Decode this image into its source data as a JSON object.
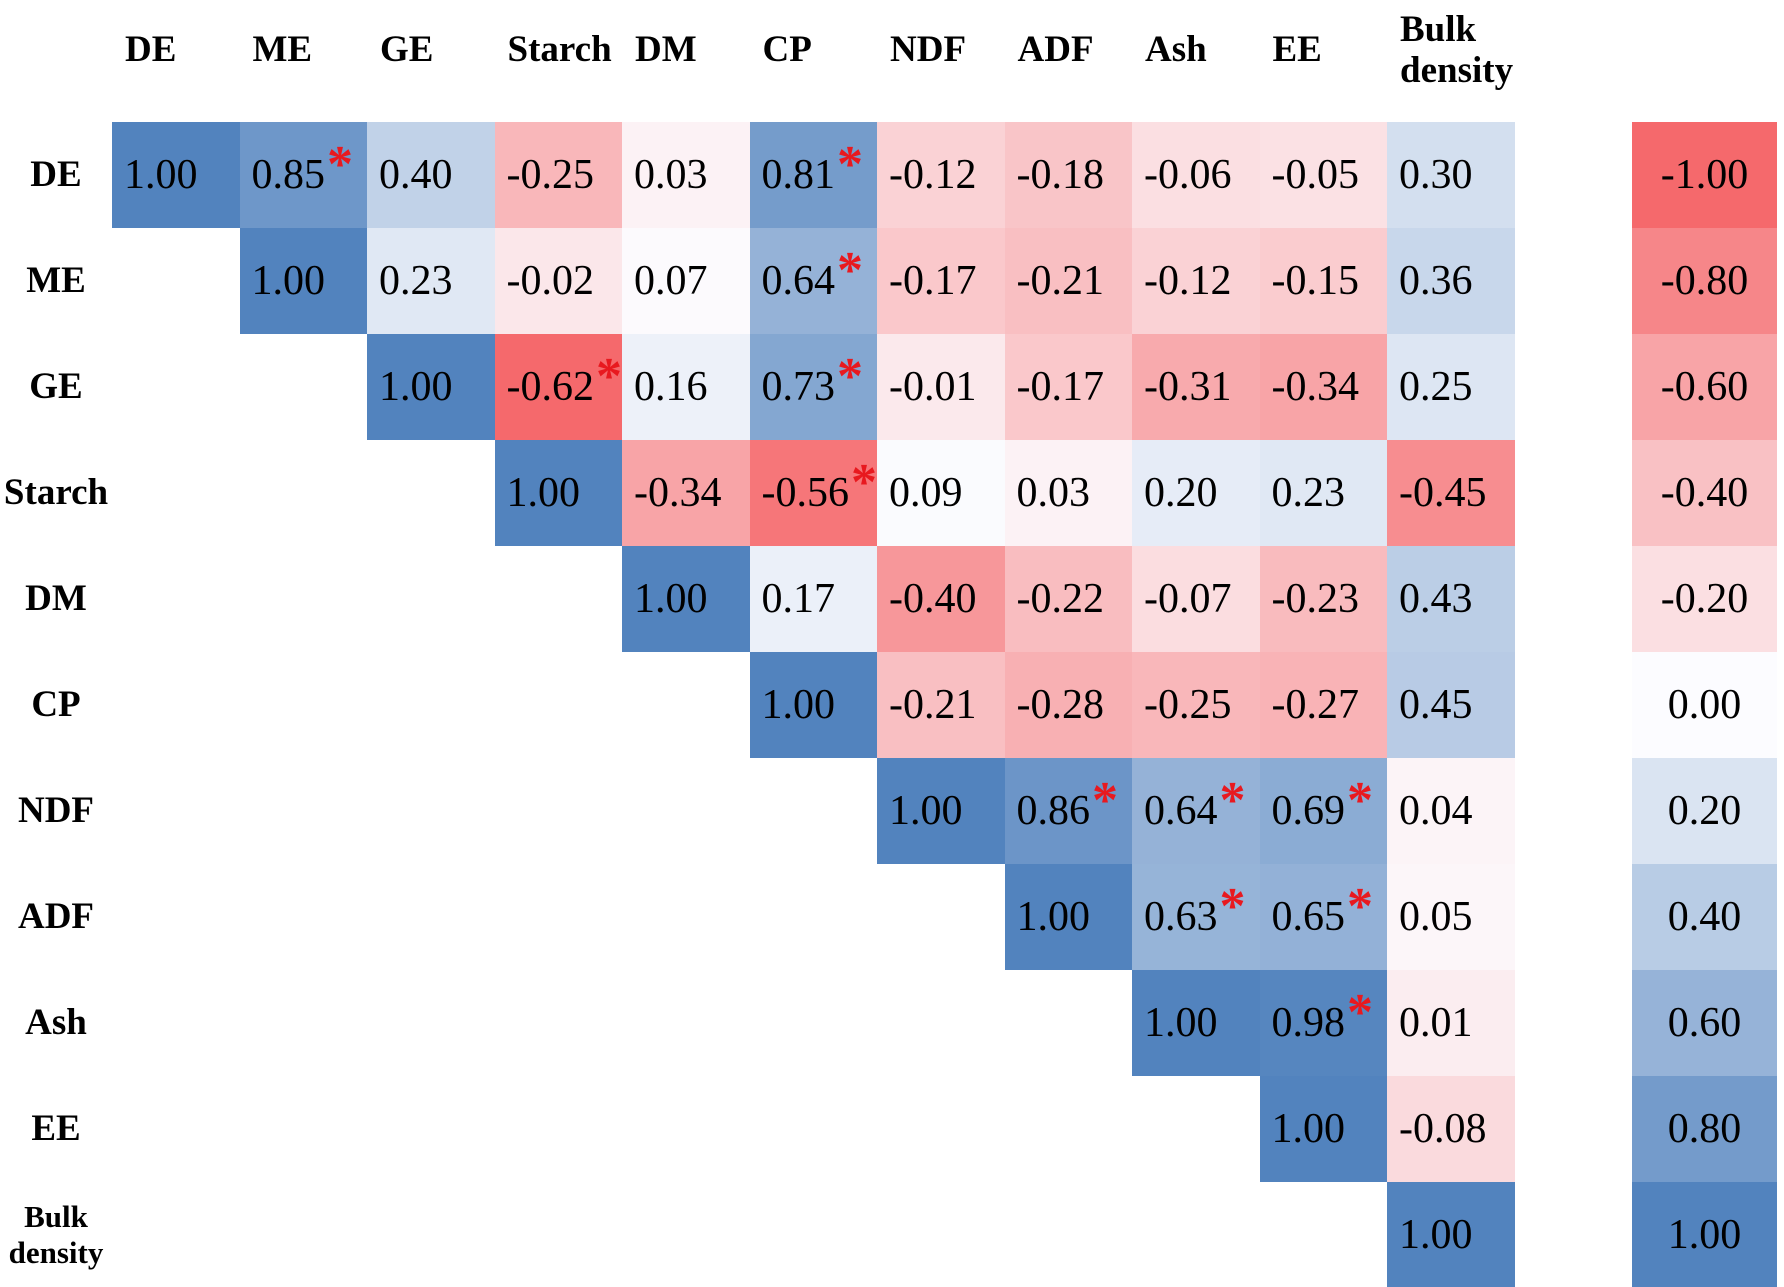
{
  "chart_data": {
    "type": "heatmap",
    "subtype": "correlation-matrix-upper-triangle",
    "title": "",
    "variables": [
      "DE",
      "ME",
      "GE",
      "Starch",
      "DM",
      "CP",
      "NDF",
      "ADF",
      "Ash",
      "EE",
      "Bulk density"
    ],
    "matrix": [
      [
        1.0,
        0.85,
        0.4,
        -0.25,
        0.03,
        0.81,
        -0.12,
        -0.18,
        -0.06,
        -0.05,
        0.3
      ],
      [
        null,
        1.0,
        0.23,
        -0.02,
        0.07,
        0.64,
        -0.17,
        -0.21,
        -0.12,
        -0.15,
        0.36
      ],
      [
        null,
        null,
        1.0,
        -0.62,
        0.16,
        0.73,
        -0.01,
        -0.17,
        -0.31,
        -0.34,
        0.25
      ],
      [
        null,
        null,
        null,
        1.0,
        -0.34,
        -0.56,
        0.09,
        0.03,
        0.2,
        0.23,
        -0.45
      ],
      [
        null,
        null,
        null,
        null,
        1.0,
        0.17,
        -0.4,
        -0.22,
        -0.07,
        -0.23,
        0.43
      ],
      [
        null,
        null,
        null,
        null,
        null,
        1.0,
        -0.21,
        -0.28,
        -0.25,
        -0.27,
        0.45
      ],
      [
        null,
        null,
        null,
        null,
        null,
        null,
        1.0,
        0.86,
        0.64,
        0.69,
        0.04
      ],
      [
        null,
        null,
        null,
        null,
        null,
        null,
        null,
        1.0,
        0.63,
        0.65,
        0.05
      ],
      [
        null,
        null,
        null,
        null,
        null,
        null,
        null,
        null,
        1.0,
        0.98,
        0.01
      ],
      [
        null,
        null,
        null,
        null,
        null,
        null,
        null,
        null,
        null,
        1.0,
        -0.08
      ],
      [
        null,
        null,
        null,
        null,
        null,
        null,
        null,
        null,
        null,
        null,
        1.0
      ]
    ],
    "significant_cells": [
      [
        0,
        1
      ],
      [
        0,
        5
      ],
      [
        1,
        5
      ],
      [
        2,
        3
      ],
      [
        2,
        5
      ],
      [
        3,
        5
      ],
      [
        6,
        7
      ],
      [
        6,
        8
      ],
      [
        6,
        9
      ],
      [
        7,
        8
      ],
      [
        7,
        9
      ],
      [
        8,
        9
      ]
    ],
    "significance_marker": "*",
    "value_decimals": 2,
    "legend_ticks": [
      -1.0,
      -0.8,
      -0.6,
      -0.4,
      -0.2,
      0.0,
      0.2,
      0.4,
      0.6,
      0.8,
      1.0
    ],
    "legend_position": "right",
    "grid": false,
    "colors": {
      "scale_low": "#F5696C",
      "scale_mid": "#FCFCFF",
      "scale_high": "#5283BE",
      "star": "#E8191F",
      "text": "#000000",
      "background": "#FFFFFF"
    },
    "color_scale": {
      "matrix": {
        "min": -0.62,
        "mid": 0.08,
        "max": 1.0
      },
      "legend": {
        "min": -1.0,
        "mid": 0.0,
        "max": 1.0
      }
    }
  }
}
